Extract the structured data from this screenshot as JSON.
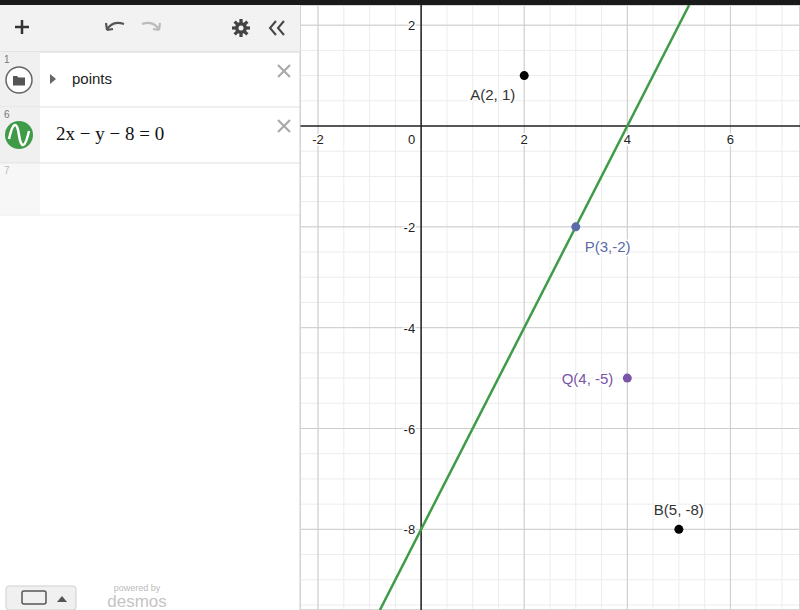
{
  "chart_data": {
    "type": "scatter",
    "xlim": [
      -2.35,
      7.35
    ],
    "ylim": [
      -9.6,
      2.4
    ],
    "xticks": [
      -2,
      0,
      2,
      4,
      6
    ],
    "yticks": [
      -8,
      -6,
      -4,
      -2,
      2
    ],
    "grid": true,
    "series": [
      {
        "name": "2x − y − 8 = 0",
        "type": "line",
        "color": "#3f9b48",
        "x": [
          -0.8,
          5.2
        ],
        "values": [
          -9.6,
          2.4
        ]
      },
      {
        "type": "scatter",
        "color": "#000000",
        "x": [
          2,
          5
        ],
        "values": [
          1,
          -8
        ],
        "labels": [
          "A(2, 1)",
          "B(5, -8)"
        ]
      },
      {
        "type": "scatter",
        "color": "#5b6aa8",
        "x": [
          3
        ],
        "values": [
          -2
        ],
        "labels": [
          "P(3,-2)"
        ]
      },
      {
        "type": "scatter",
        "color": "#7a55a8",
        "x": [
          4
        ],
        "values": [
          -5
        ],
        "labels": [
          "Q(4, -5)"
        ]
      }
    ]
  },
  "panel": {
    "rows": [
      {
        "number": 1,
        "label": "points"
      },
      {
        "number": 6
      },
      {
        "number": 7
      }
    ],
    "footer": [
      "powered by",
      "desmos"
    ]
  }
}
